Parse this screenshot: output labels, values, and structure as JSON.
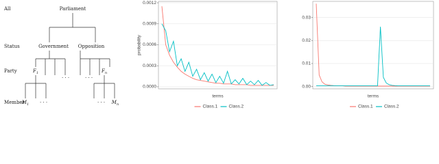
{
  "tree": {
    "levels": [
      "All",
      "Status",
      "Party",
      "Member"
    ],
    "nodes": [
      {
        "label": "Parliament"
      },
      {
        "label": "Government"
      },
      {
        "label": "Opposition"
      },
      {
        "label": "F",
        "sub": "1"
      },
      {
        "label": "F",
        "sub": "n"
      },
      {
        "label": "M",
        "sub": "1"
      },
      {
        "label": "M",
        "sub": "n"
      }
    ]
  },
  "chart_data": [
    {
      "type": "line",
      "xlabel": "terms",
      "ylabel": "probability",
      "ylim": [
        -3e-05,
        0.00122
      ],
      "yticks": [
        {
          "value": 0,
          "label": "0.0000"
        },
        0.0003,
        0.0006,
        0.0009,
        0.0012
      ],
      "grid": true,
      "legend": "bottom",
      "series": [
        {
          "name": "Class.1",
          "color": "#f8766d",
          "values": [
            0.00115,
            0.0006,
            0.00045,
            0.00035,
            0.00028,
            0.00022,
            0.00018,
            0.00015,
            0.00012,
            0.0001,
            9e-05,
            8e-05,
            7e-05,
            6e-05,
            5e-05,
            5e-05,
            4e-05,
            4e-05,
            4e-05,
            3e-05,
            3e-05,
            3e-05,
            3e-05,
            2e-05,
            2e-05,
            2e-05,
            2e-05,
            2e-05,
            2e-05,
            2e-05
          ]
        },
        {
          "name": "Class.2",
          "color": "#00bfc4",
          "values": [
            0.0009,
            0.0008,
            0.0005,
            0.00065,
            0.0003,
            0.0004,
            0.00022,
            0.00035,
            0.00015,
            0.00025,
            0.0001,
            0.0002,
            8e-05,
            0.00018,
            6e-05,
            0.00015,
            5e-05,
            0.00022,
            4e-05,
            0.0001,
            4e-05,
            0.00012,
            3e-05,
            8e-05,
            3e-05,
            9e-05,
            2e-05,
            6e-05,
            2e-05,
            3e-05
          ]
        }
      ]
    },
    {
      "type": "line",
      "xlabel": "terms",
      "ylim": [
        -0.001,
        0.037
      ],
      "yticks": [
        {
          "value": 0,
          "label": "0.00"
        },
        0.01,
        0.02,
        0.03
      ],
      "grid": true,
      "legend": "bottom",
      "series": [
        {
          "name": "Class.1",
          "color": "#f8766d",
          "values": [
            0.036,
            0.005,
            0.002,
            0.001,
            0.0007,
            0.0005,
            0.0004,
            0.0003,
            0.0003,
            0.0003,
            0.0002,
            0.0002,
            0.0002,
            0.0002,
            0.0002,
            0.0002,
            0.0002,
            0.0002,
            0.0002,
            0.0002,
            0.0002,
            0.0002,
            0.0002,
            0.0002,
            0.0002,
            0.0002,
            0.0002,
            0.0002,
            0.0002,
            0.0002,
            0.0002,
            0.0002,
            0.0002,
            0.0002,
            0.0002,
            0.0002,
            0.0002,
            0.0002,
            0.0002,
            0.0002
          ]
        },
        {
          "name": "Class.2",
          "color": "#00bfc4",
          "values": [
            0.0003,
            0.0003,
            0.0003,
            0.0003,
            0.0003,
            0.0003,
            0.0003,
            0.0003,
            0.0003,
            0.0003,
            0.0003,
            0.0003,
            0.0003,
            0.0003,
            0.0003,
            0.0003,
            0.0003,
            0.0003,
            0.0003,
            0.0003,
            0.0003,
            0.0003,
            0.026,
            0.004,
            0.0015,
            0.0008,
            0.0005,
            0.0004,
            0.0003,
            0.0003,
            0.0003,
            0.0003,
            0.0003,
            0.0003,
            0.0003,
            0.0003,
            0.0003,
            0.0003,
            0.0003,
            0.0003
          ]
        }
      ]
    }
  ]
}
